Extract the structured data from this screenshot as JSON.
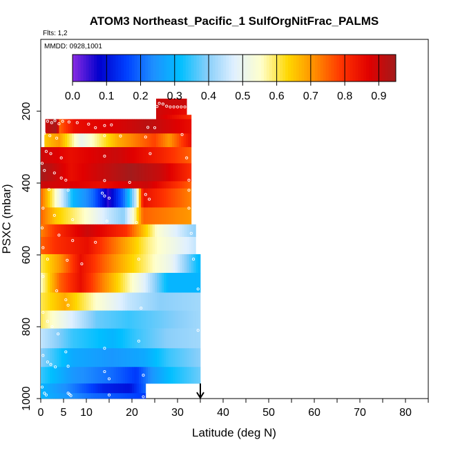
{
  "chart_data": {
    "type": "heatmap",
    "title": "ATOM3 Northeast_Pacific_1 SulfOrgNitFrac_PALMS",
    "flights_label": "Flts: 1,2",
    "date_label": "MMDD: 0928,1001",
    "xlabel": "Latitude (deg N)",
    "ylabel": "PSXC (mbar)",
    "xlim": [
      0,
      85
    ],
    "ylim": [
      1000,
      0
    ],
    "x_ticks": [
      0,
      5,
      10,
      20,
      30,
      40,
      50,
      60,
      70,
      80
    ],
    "y_ticks": [
      200,
      400,
      600,
      800,
      1000
    ],
    "colorbar": {
      "range": [
        0.0,
        0.95
      ],
      "ticks": [
        "0.0",
        "0.1",
        "0.2",
        "0.3",
        "0.4",
        "0.5",
        "0.6",
        "0.7",
        "0.8",
        "0.9"
      ],
      "colors": [
        "#8a2be2",
        "#0000cd",
        "#0040ff",
        "#1e90ff",
        "#00bfff",
        "#87cefa",
        "#e0f0ff",
        "#ffffcc",
        "#ffd700",
        "#ff8c00",
        "#ff3300",
        "#e00000",
        "#a31b1b"
      ]
    },
    "marker_latitude": 35,
    "rows": [
      {
        "p": [
          165,
          188
        ],
        "x0": 25.3,
        "x1": 32.0,
        "v": [
          [
            0,
            0.9
          ],
          [
            1,
            0.9
          ]
        ]
      },
      {
        "p": [
          188,
          210
        ],
        "x0": 25.3,
        "x1": 32.0,
        "v": [
          [
            0,
            0.9
          ],
          [
            1,
            0.85
          ]
        ]
      },
      {
        "p": [
          210,
          222
        ],
        "x0": 25.3,
        "x1": 33.0,
        "v": [
          [
            0,
            0.9
          ],
          [
            1,
            0.8
          ]
        ]
      },
      {
        "p": [
          222,
          262
        ],
        "x0": 1.0,
        "x1": 33.0,
        "v": [
          [
            0,
            0.9
          ],
          [
            0.08,
            0.95
          ],
          [
            0.1,
            0.75
          ],
          [
            0.2,
            0.85
          ],
          [
            0.5,
            0.88
          ],
          [
            0.7,
            0.92
          ],
          [
            1,
            0.85
          ]
        ]
      },
      {
        "p": [
          262,
          300
        ],
        "x0": 0.8,
        "x1": 33.0,
        "v": [
          [
            0,
            0.65
          ],
          [
            0.1,
            0.7
          ],
          [
            0.25,
            0.5
          ],
          [
            0.5,
            0.68
          ],
          [
            0.75,
            0.78
          ],
          [
            0.85,
            0.7
          ],
          [
            1,
            0.85
          ]
        ]
      },
      {
        "p": [
          300,
          345
        ],
        "x0": 0.0,
        "x1": 33.0,
        "v": [
          [
            0,
            0.9
          ],
          [
            0.2,
            0.85
          ],
          [
            0.5,
            0.9
          ],
          [
            0.8,
            0.82
          ],
          [
            1,
            0.75
          ]
        ]
      },
      {
        "p": [
          345,
          395
        ],
        "x0": 0.0,
        "x1": 33.0,
        "v": [
          [
            0,
            0.95
          ],
          [
            0.2,
            0.85
          ],
          [
            0.6,
            0.95
          ],
          [
            0.8,
            0.9
          ],
          [
            1,
            0.8
          ]
        ]
      },
      {
        "p": [
          395,
          415
        ],
        "x0": 0.0,
        "x1": 33.0,
        "v": [
          [
            0,
            0.9
          ],
          [
            0.4,
            0.85
          ],
          [
            0.7,
            0.9
          ],
          [
            1,
            0.75
          ]
        ]
      },
      {
        "p": [
          415,
          468
        ],
        "x0": 0.0,
        "x1": 33.0,
        "v": [
          [
            0,
            0.75
          ],
          [
            0.1,
            0.55
          ],
          [
            0.22,
            0.3
          ],
          [
            0.35,
            0.2
          ],
          [
            0.45,
            0.05
          ],
          [
            0.55,
            0.2
          ],
          [
            0.63,
            0.45
          ],
          [
            0.68,
            0.85
          ],
          [
            0.8,
            0.8
          ],
          [
            1,
            0.72
          ]
        ]
      },
      {
        "p": [
          468,
          515
        ],
        "x0": 0.0,
        "x1": 33.0,
        "v": [
          [
            0,
            0.75
          ],
          [
            0.1,
            0.65
          ],
          [
            0.3,
            0.55
          ],
          [
            0.45,
            0.45
          ],
          [
            0.55,
            0.4
          ],
          [
            0.62,
            0.55
          ],
          [
            0.68,
            0.75
          ],
          [
            1,
            0.7
          ]
        ]
      },
      {
        "p": [
          515,
          550
        ],
        "x0": 0.0,
        "x1": 34.0,
        "v": [
          [
            0,
            0.72
          ],
          [
            0.1,
            0.8
          ],
          [
            0.3,
            0.9
          ],
          [
            0.55,
            0.8
          ],
          [
            0.75,
            0.55
          ],
          [
            1,
            0.4
          ]
        ]
      },
      {
        "p": [
          550,
          598
        ],
        "x0": 0.0,
        "x1": 34.0,
        "v": [
          [
            0,
            0.75
          ],
          [
            0.1,
            0.8
          ],
          [
            0.3,
            0.85
          ],
          [
            0.5,
            0.72
          ],
          [
            0.7,
            0.58
          ],
          [
            1,
            0.45
          ]
        ]
      },
      {
        "p": [
          598,
          650
        ],
        "x0": 0.0,
        "x1": 35.0,
        "v": [
          [
            0,
            0.6
          ],
          [
            0.12,
            0.7
          ],
          [
            0.25,
            0.85
          ],
          [
            0.5,
            0.68
          ],
          [
            0.72,
            0.55
          ],
          [
            0.82,
            0.5
          ],
          [
            1,
            0.3
          ]
        ]
      },
      {
        "p": [
          650,
          705
        ],
        "x0": 0.0,
        "x1": 35.0,
        "v": [
          [
            0,
            0.55
          ],
          [
            0.12,
            0.75
          ],
          [
            0.25,
            0.85
          ],
          [
            0.5,
            0.62
          ],
          [
            0.65,
            0.48
          ],
          [
            0.8,
            0.3
          ],
          [
            1,
            0.3
          ]
        ]
      },
      {
        "p": [
          705,
          755
        ],
        "x0": 0.0,
        "x1": 35.0,
        "v": [
          [
            0,
            0.6
          ],
          [
            0.15,
            0.68
          ],
          [
            0.35,
            0.55
          ],
          [
            0.55,
            0.45
          ],
          [
            0.75,
            0.4
          ],
          [
            1,
            0.42
          ]
        ]
      },
      {
        "p": [
          755,
          805
        ],
        "x0": 0.0,
        "x1": 35.0,
        "v": [
          [
            0,
            0.6
          ],
          [
            0.15,
            0.5
          ],
          [
            0.35,
            0.38
          ],
          [
            0.55,
            0.35
          ],
          [
            0.75,
            0.38
          ],
          [
            1,
            0.42
          ]
        ]
      },
      {
        "p": [
          805,
          860
        ],
        "x0": 0.0,
        "x1": 35.0,
        "v": [
          [
            0,
            0.45
          ],
          [
            0.2,
            0.35
          ],
          [
            0.45,
            0.3
          ],
          [
            0.6,
            0.35
          ],
          [
            0.8,
            0.4
          ],
          [
            1,
            0.42
          ]
        ]
      },
      {
        "p": [
          860,
          912
        ],
        "x0": 0.0,
        "x1": 35.0,
        "v": [
          [
            0,
            0.4
          ],
          [
            0.2,
            0.28
          ],
          [
            0.45,
            0.25
          ],
          [
            0.65,
            0.28
          ],
          [
            0.8,
            0.35
          ],
          [
            1,
            0.4
          ]
        ]
      },
      {
        "p": [
          912,
          958
        ],
        "x0": 0.0,
        "x1": 35.0,
        "v": [
          [
            0,
            0.35
          ],
          [
            0.2,
            0.25
          ],
          [
            0.45,
            0.2
          ],
          [
            0.6,
            0.15
          ],
          [
            0.7,
            0.25
          ],
          [
            0.82,
            0.32
          ],
          [
            1,
            0.38
          ]
        ]
      },
      {
        "p": [
          958,
          985
        ],
        "x0": 0.0,
        "x1": 23.0,
        "v": [
          [
            0,
            0.3
          ],
          [
            0.3,
            0.22
          ],
          [
            0.6,
            0.12
          ],
          [
            0.85,
            0.1
          ],
          [
            1,
            0.2
          ]
        ]
      },
      {
        "p": [
          985,
          1000
        ],
        "x0": 0.0,
        "x1": 23.0,
        "v": [
          [
            0,
            0.3
          ],
          [
            0.5,
            0.2
          ],
          [
            1,
            0.15
          ]
        ]
      }
    ],
    "obs_points": [
      [
        26.0,
        178
      ],
      [
        26.8,
        180
      ],
      [
        27.6,
        186
      ],
      [
        28.4,
        188
      ],
      [
        29.2,
        188
      ],
      [
        30.0,
        188
      ],
      [
        30.8,
        188
      ],
      [
        31.6,
        188
      ],
      [
        25.5,
        187
      ],
      [
        1.5,
        228
      ],
      [
        2.4,
        232
      ],
      [
        3.1,
        226
      ],
      [
        4.0,
        235
      ],
      [
        4.8,
        228
      ],
      [
        6.2,
        230
      ],
      [
        8.0,
        232
      ],
      [
        10.5,
        236
      ],
      [
        12.0,
        246
      ],
      [
        14.0,
        240
      ],
      [
        15.5,
        238
      ],
      [
        23.5,
        245
      ],
      [
        25.0,
        246
      ],
      [
        0.8,
        262
      ],
      [
        2.0,
        268
      ],
      [
        3.5,
        275
      ],
      [
        14.0,
        268
      ],
      [
        17.5,
        269
      ],
      [
        23.0,
        272
      ],
      [
        31.0,
        265
      ],
      [
        0.5,
        295
      ],
      [
        1.2,
        312
      ],
      [
        2.2,
        318
      ],
      [
        4.5,
        330
      ],
      [
        14.0,
        325
      ],
      [
        24.0,
        318
      ],
      [
        32.0,
        330
      ],
      [
        0.3,
        345
      ],
      [
        0.8,
        365
      ],
      [
        3.0,
        372
      ],
      [
        4.5,
        386
      ],
      [
        5.5,
        392
      ],
      [
        14.0,
        393
      ],
      [
        19.5,
        398
      ],
      [
        32.5,
        392
      ],
      [
        1.8,
        418
      ],
      [
        6.0,
        420
      ],
      [
        13.5,
        428
      ],
      [
        14.0,
        436
      ],
      [
        15.0,
        442
      ],
      [
        23.0,
        432
      ],
      [
        23.8,
        445
      ],
      [
        32.5,
        420
      ],
      [
        0.5,
        470
      ],
      [
        3.0,
        490
      ],
      [
        7.0,
        502
      ],
      [
        14.5,
        506
      ],
      [
        21.0,
        510
      ],
      [
        32.5,
        470
      ],
      [
        0.3,
        525
      ],
      [
        4.0,
        545
      ],
      [
        7.0,
        560
      ],
      [
        12.0,
        565
      ],
      [
        33.0,
        540
      ],
      [
        0.5,
        580
      ],
      [
        1.5,
        612
      ],
      [
        5.8,
        615
      ],
      [
        9.0,
        625
      ],
      [
        21.5,
        612
      ],
      [
        33.5,
        612
      ],
      [
        0.5,
        660
      ],
      [
        3.5,
        700
      ],
      [
        5.5,
        725
      ],
      [
        6.0,
        740
      ],
      [
        22.0,
        748
      ],
      [
        34.5,
        695
      ],
      [
        0.5,
        760
      ],
      [
        1.5,
        785
      ],
      [
        2.5,
        800
      ],
      [
        3.8,
        820
      ],
      [
        5.5,
        870
      ],
      [
        14.0,
        860
      ],
      [
        21.5,
        840
      ],
      [
        34.5,
        810
      ],
      [
        0.5,
        880
      ],
      [
        1.5,
        898
      ],
      [
        2.2,
        905
      ],
      [
        3.2,
        912
      ],
      [
        6.0,
        910
      ],
      [
        14.0,
        925
      ],
      [
        15.0,
        945
      ],
      [
        22.5,
        935
      ],
      [
        0.3,
        968
      ],
      [
        0.8,
        985
      ],
      [
        1.2,
        990
      ],
      [
        6.0,
        985
      ],
      [
        6.3,
        988
      ],
      [
        6.6,
        992
      ],
      [
        15.0,
        990
      ],
      [
        22.5,
        995
      ]
    ]
  }
}
